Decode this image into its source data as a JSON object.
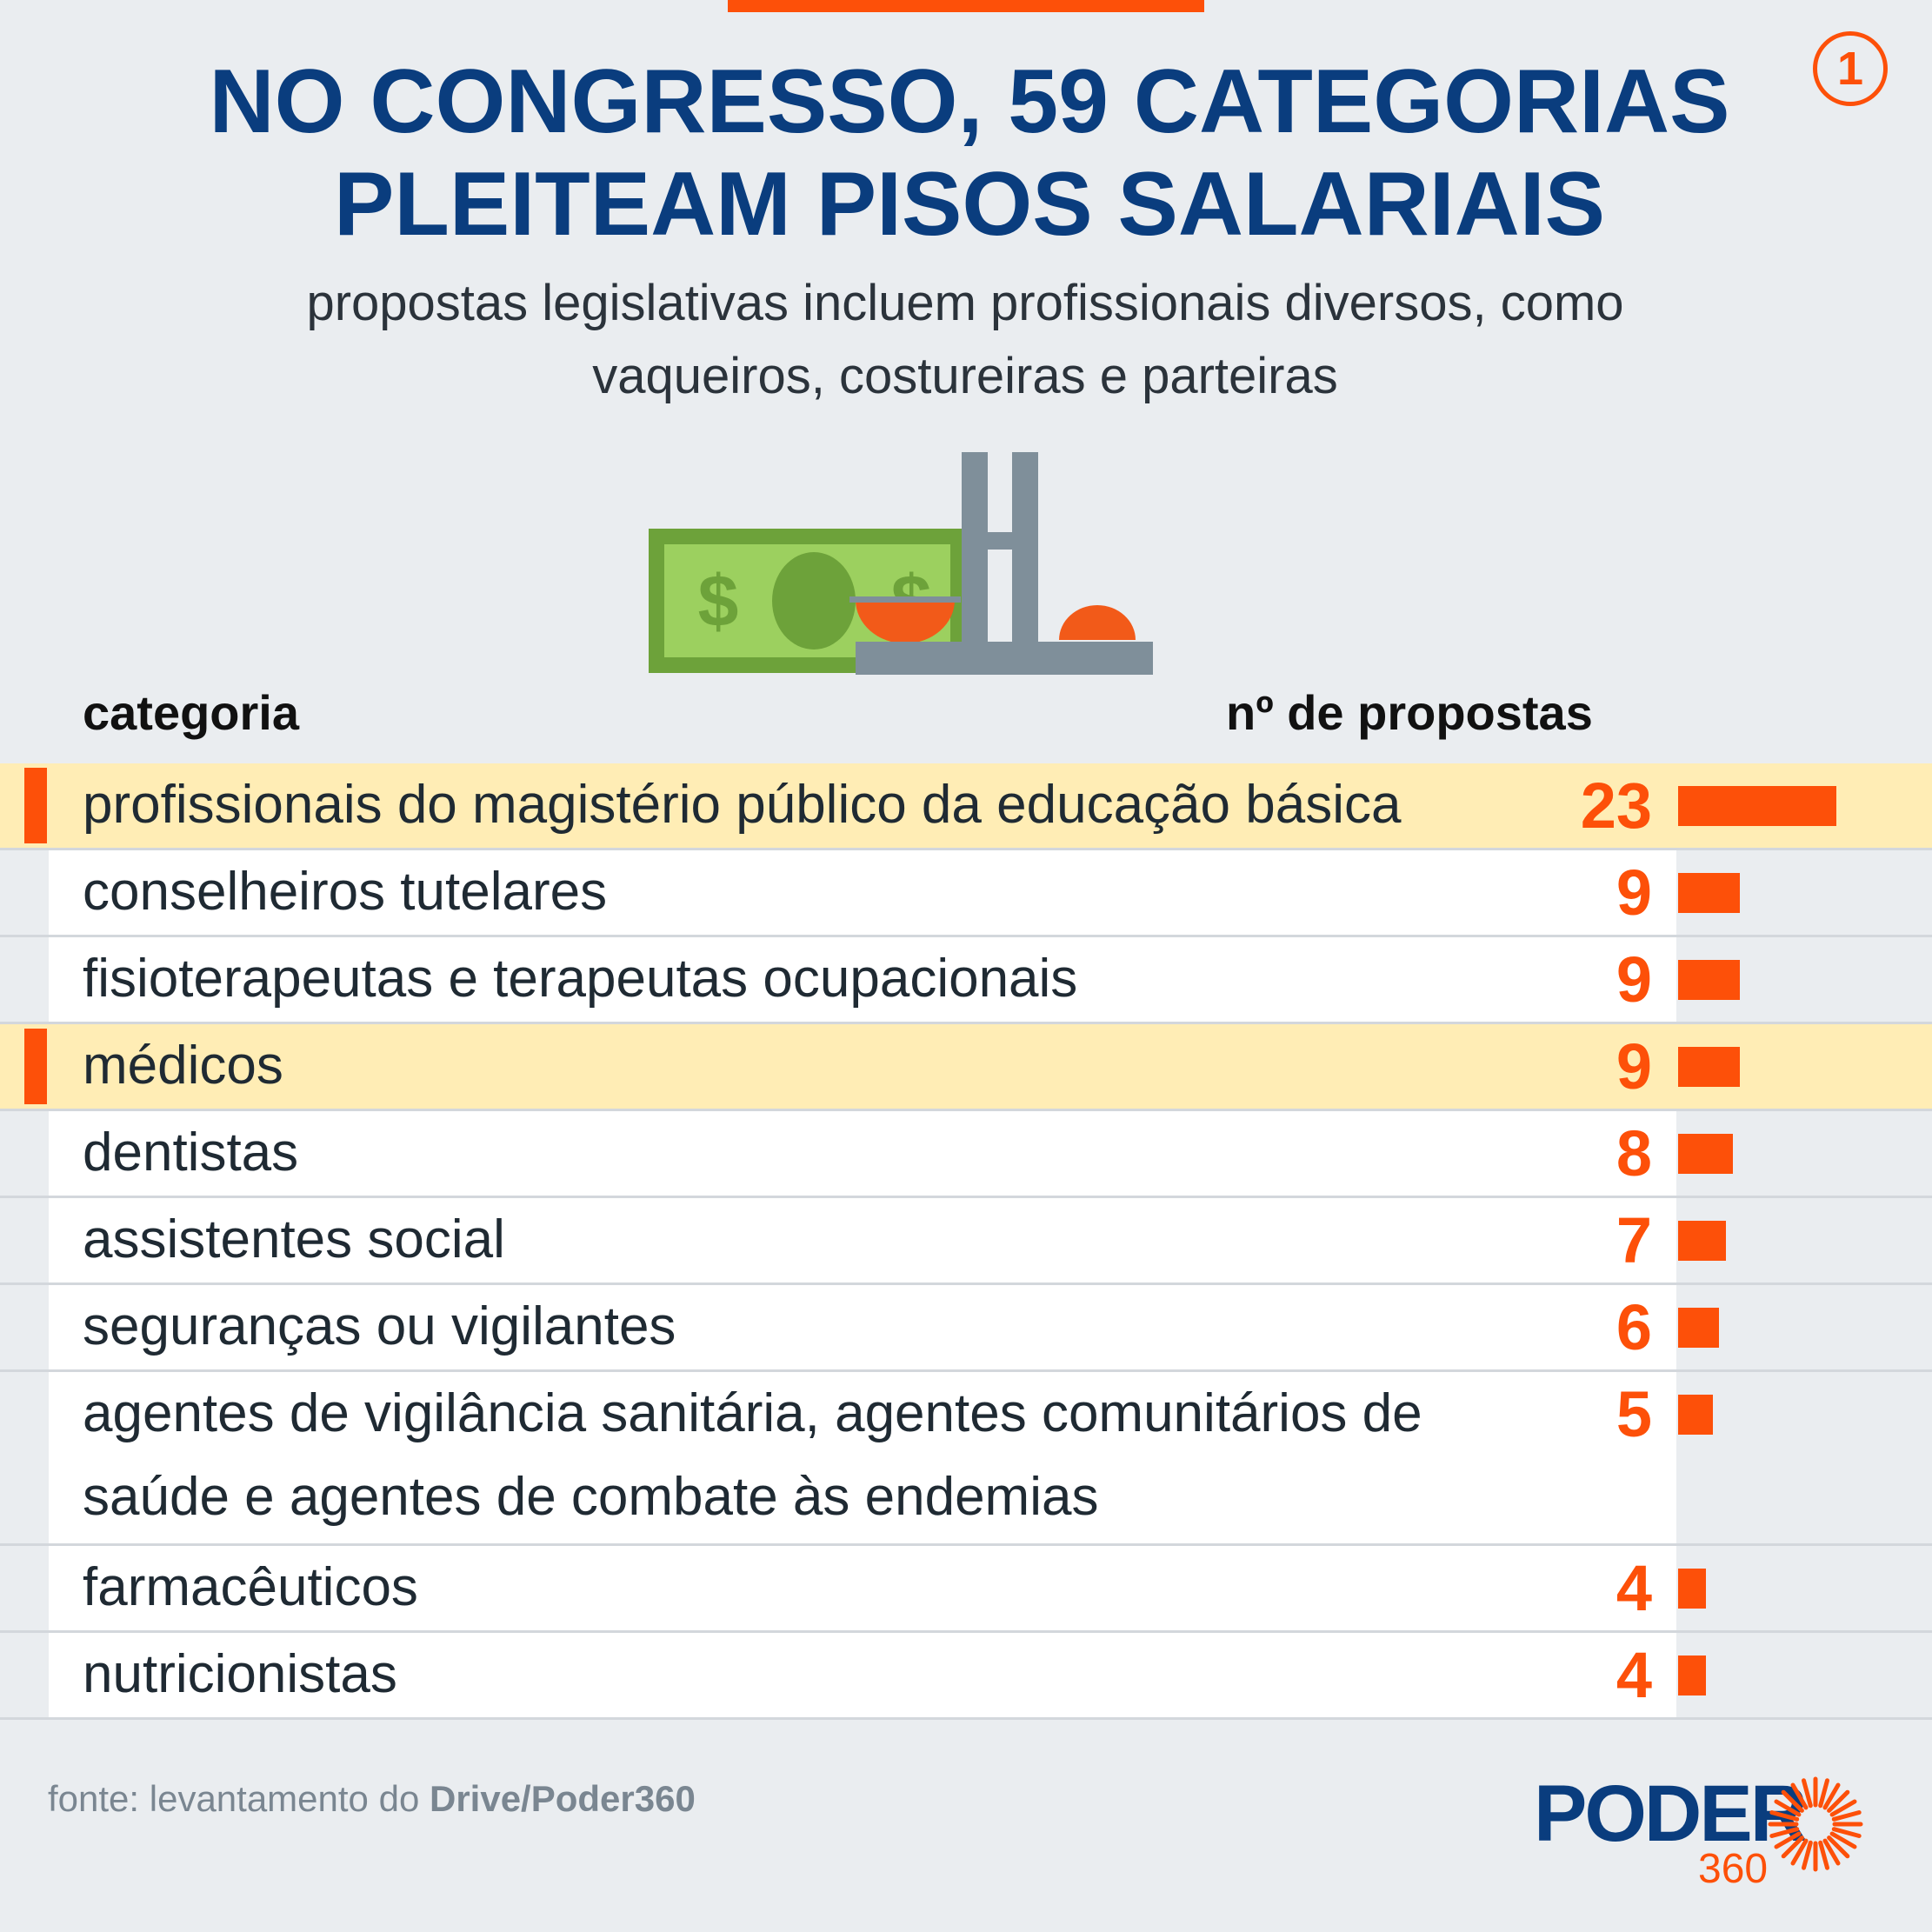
{
  "header": {
    "badge": "1",
    "title_line1": "NO CONGRESSO, 59 CATEGORIAS",
    "title_line2": "PLEITEAM PISOS SALARIAIS",
    "subtitle_line1": "propostas legislativas incluem profissionais diversos, como",
    "subtitle_line2": "vaqueiros, costureiras e parteiras"
  },
  "chart_data": {
    "type": "bar",
    "orientation": "horizontal",
    "columns": {
      "category": "categoria",
      "value": "nº de propostas"
    },
    "categories": [
      "profissionais do magistério público da educação básica",
      "conselheiros tutelares",
      "fisioterapeutas e terapeutas ocupacionais",
      "médicos",
      "dentistas",
      "assistentes social",
      "seguranças ou vigilantes",
      "agentes de vigilância sanitária, agentes comunitários de saúde e agentes de combate às endemias",
      "farmacêuticos",
      "nutricionistas"
    ],
    "values": [
      23,
      9,
      9,
      9,
      8,
      7,
      6,
      5,
      4,
      4
    ],
    "highlighted": [
      true,
      false,
      false,
      true,
      false,
      false,
      false,
      false,
      false,
      false
    ],
    "colors": {
      "bar": "#fd5009",
      "highlight_row": "#ffedb5",
      "title": "#0a3d7e"
    }
  },
  "footer": {
    "source_prefix": "fonte: levantamento do ",
    "source_bold": "Drive/Poder360",
    "logo_word": "PODER",
    "logo_number": "360"
  },
  "icons": [
    "money-bill-icon",
    "congress-building-icon",
    "sun-rays-icon"
  ]
}
